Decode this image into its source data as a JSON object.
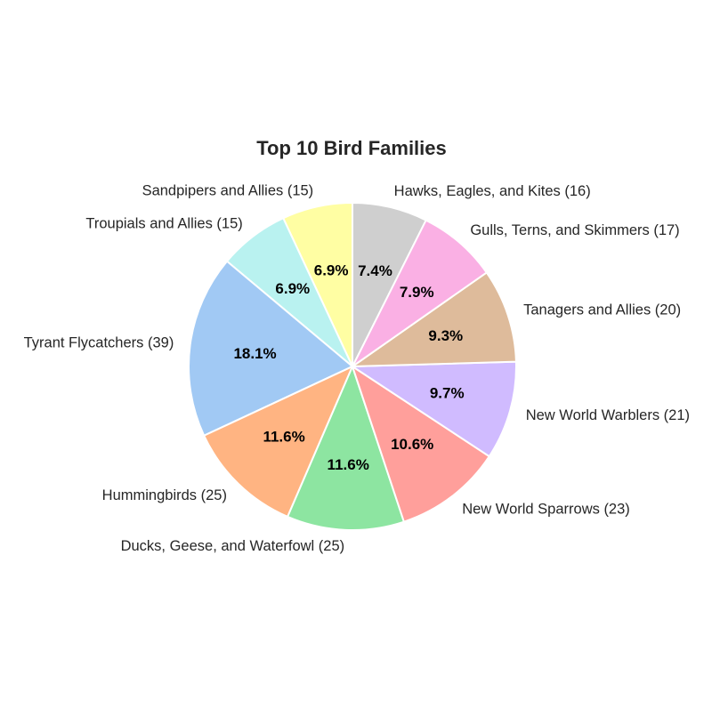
{
  "chart_data": {
    "type": "pie",
    "title": "Top 10 Bird Families",
    "start_angle_deg": 90,
    "direction": "counterclockwise",
    "slices": [
      {
        "label": "Sandpipers and Allies (15)",
        "category": "Sandpipers and Allies",
        "value": 15,
        "pct_label": "6.9%",
        "color": "#fffea3"
      },
      {
        "label": "Troupials and Allies (15)",
        "category": "Troupials and Allies",
        "value": 15,
        "pct_label": "6.9%",
        "color": "#b9f2f0"
      },
      {
        "label": "Tyrant Flycatchers (39)",
        "category": "Tyrant Flycatchers",
        "value": 39,
        "pct_label": "18.1%",
        "color": "#a1c9f4"
      },
      {
        "label": "Hummingbirds (25)",
        "category": "Hummingbirds",
        "value": 25,
        "pct_label": "11.6%",
        "color": "#ffb482"
      },
      {
        "label": "Ducks, Geese, and Waterfowl (25)",
        "category": "Ducks, Geese, and Waterfowl",
        "value": 25,
        "pct_label": "11.6%",
        "color": "#8de5a1"
      },
      {
        "label": "New World Sparrows (23)",
        "category": "New World Sparrows",
        "value": 23,
        "pct_label": "10.6%",
        "color": "#ff9f9b"
      },
      {
        "label": "New World Warblers (21)",
        "category": "New World Warblers",
        "value": 21,
        "pct_label": "9.7%",
        "color": "#d0bbff"
      },
      {
        "label": "Tanagers and Allies (20)",
        "category": "Tanagers and Allies",
        "value": 20,
        "pct_label": "9.3%",
        "color": "#debb9b"
      },
      {
        "label": "Gulls, Terns, and Skimmers (17)",
        "category": "Gulls, Terns, and Skimmers",
        "value": 17,
        "pct_label": "7.9%",
        "color": "#fab0e4"
      },
      {
        "label": "Hawks, Eagles, and Kites (16)",
        "category": "Hawks, Eagles, and Kites",
        "value": 16,
        "pct_label": "7.4%",
        "color": "#cfcfcf"
      }
    ]
  }
}
